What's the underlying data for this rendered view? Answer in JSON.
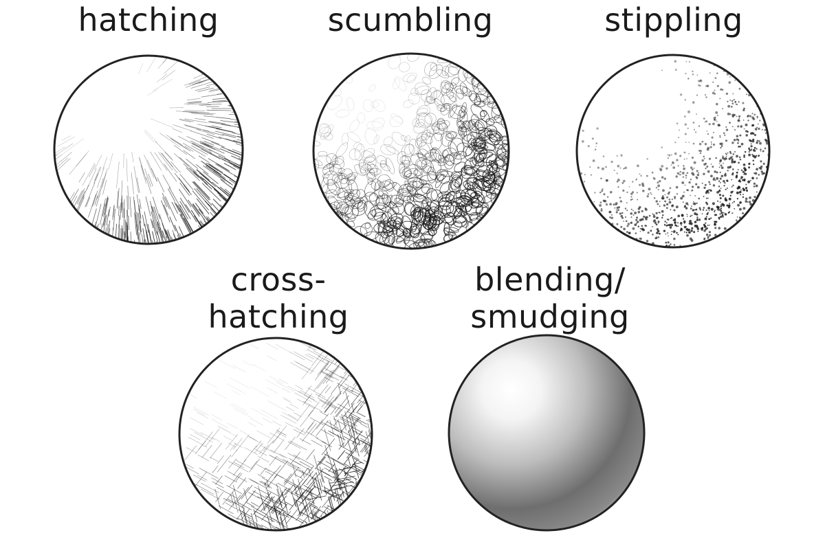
{
  "techniques": [
    {
      "id": "hatching",
      "lines": [
        "hatching"
      ],
      "icon": "hatching-sphere-icon"
    },
    {
      "id": "scumbling",
      "lines": [
        "scumbling"
      ],
      "icon": "scumbling-sphere-icon"
    },
    {
      "id": "stippling",
      "lines": [
        "stippling"
      ],
      "icon": "stippling-sphere-icon"
    },
    {
      "id": "cross-hatching",
      "lines": [
        "cross-",
        "hatching"
      ],
      "icon": "cross-hatching-sphere-icon"
    },
    {
      "id": "blending",
      "lines": [
        "blending/",
        "smudging"
      ],
      "icon": "blending-sphere-icon"
    }
  ],
  "colors": {
    "ink": "#1a1a1a",
    "paper": "#ffffff",
    "outline": "#222222"
  }
}
